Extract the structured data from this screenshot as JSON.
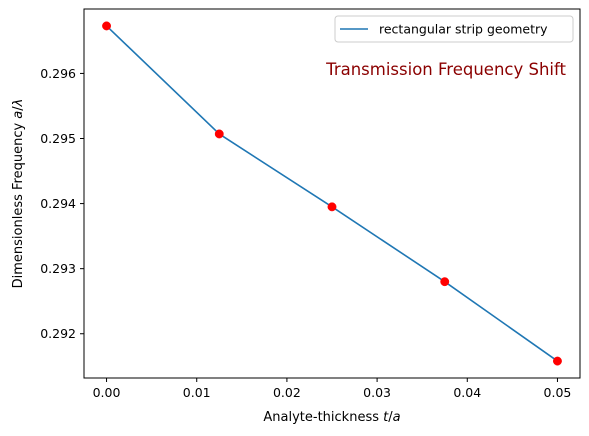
{
  "chart_data": {
    "type": "line",
    "x": [
      0.0,
      0.0125,
      0.025,
      0.0375,
      0.05
    ],
    "series": [
      {
        "name": "rectangular strip geometry",
        "values": [
          0.29673,
          0.29507,
          0.29395,
          0.2928,
          0.29158
        ],
        "line_color": "#1f77b4",
        "marker_color": "#ff0000"
      }
    ],
    "xlabel": "Analyte-thickness t/a",
    "ylabel": "Dimensionless Frequency a/λ",
    "xlim": [
      -0.0025,
      0.0525
    ],
    "ylim": [
      0.29132,
      0.29699
    ],
    "xticks": [
      0.0,
      0.01,
      0.02,
      0.03,
      0.04,
      0.05
    ],
    "xtick_labels": [
      "0.00",
      "0.01",
      "0.02",
      "0.03",
      "0.04",
      "0.05"
    ],
    "yticks": [
      0.292,
      0.293,
      0.294,
      0.295,
      0.296
    ],
    "ytick_labels": [
      "0.292",
      "0.293",
      "0.294",
      "0.295",
      "0.296"
    ],
    "annotation": {
      "text": "Transmission Frequency Shift",
      "color": "#8b0000",
      "placement": "upper-right"
    },
    "legend": {
      "placement": "upper-right"
    },
    "grid": false
  }
}
